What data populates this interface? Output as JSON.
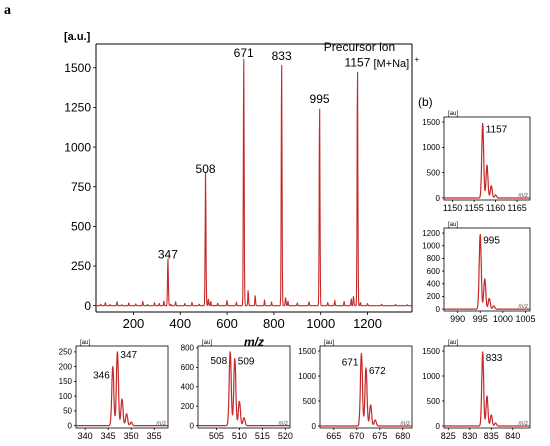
{
  "figure": {
    "panel_a_label": "a",
    "panel_b_label": "(b)"
  },
  "chart_data": [
    {
      "id": "main",
      "type": "line",
      "ylabel": "[a.u.]",
      "xlabel": "m/z",
      "xlim": [
        40,
        1390
      ],
      "ylim": [
        -40,
        1650
      ],
      "x_ticks": [
        200,
        400,
        600,
        800,
        1000,
        1200
      ],
      "y_ticks": [
        0,
        250,
        500,
        750,
        1000,
        1250,
        1500
      ],
      "series": [
        {
          "color": "#c62828",
          "baseline": [
            [
              60,
              10
            ],
            [
              80,
              20
            ],
            [
              100,
              8
            ],
            [
              130,
              25
            ],
            [
              150,
              6
            ],
            [
              180,
              18
            ],
            [
              210,
              12
            ],
            [
              240,
              28
            ],
            [
              260,
              8
            ],
            [
              290,
              20
            ],
            [
              310,
              14
            ],
            [
              330,
              30
            ],
            [
              360,
              10
            ],
            [
              380,
              26
            ],
            [
              420,
              14
            ],
            [
              450,
              22
            ],
            [
              480,
              10
            ],
            [
              530,
              28
            ],
            [
              560,
              16
            ],
            [
              600,
              34
            ],
            [
              640,
              22
            ],
            [
              690,
              40
            ],
            [
              720,
              26
            ],
            [
              760,
              36
            ],
            [
              790,
              24
            ],
            [
              860,
              30
            ],
            [
              900,
              18
            ],
            [
              950,
              26
            ],
            [
              1030,
              20
            ],
            [
              1060,
              34
            ],
            [
              1100,
              28
            ],
            [
              1130,
              45
            ],
            [
              1170,
              20
            ],
            [
              1200,
              14
            ],
            [
              1260,
              10
            ],
            [
              1320,
              8
            ],
            [
              1370,
              6
            ]
          ],
          "peaks": [
            {
              "x": 347,
              "y": 260,
              "label": "347"
            },
            {
              "x": 508,
              "y": 800,
              "label": "508"
            },
            {
              "x": 671,
              "y": 1530,
              "label": "671"
            },
            {
              "x": 833,
              "y": 1510,
              "label": "833"
            },
            {
              "x": 995,
              "y": 1240,
              "label": "995"
            },
            {
              "x": 1157,
              "y": 1470,
              "label": "1157"
            }
          ],
          "minor_peaks": [
            {
              "x": 349,
              "y": 70
            },
            {
              "x": 510,
              "y": 90
            },
            {
              "x": 520,
              "y": 40
            },
            {
              "x": 673,
              "y": 150
            },
            {
              "x": 690,
              "y": 60
            },
            {
              "x": 720,
              "y": 40
            },
            {
              "x": 835,
              "y": 120
            },
            {
              "x": 850,
              "y": 50
            },
            {
              "x": 997,
              "y": 90
            },
            {
              "x": 1140,
              "y": 60
            },
            {
              "x": 1159,
              "y": 110
            }
          ]
        }
      ],
      "annotations": [
        {
          "text": "Precursor ion",
          "x": 1157
        },
        {
          "text": "[M+Na]",
          "superscript": "+",
          "x": 1157
        }
      ]
    },
    {
      "id": "inset-1157",
      "type": "line",
      "ylabel": "[au]",
      "xlabel": "m/z",
      "xlim": [
        1148,
        1168
      ],
      "ylim": [
        -40,
        1600
      ],
      "x_ticks": [
        1150,
        1155,
        1160,
        1165
      ],
      "y_ticks": [
        0,
        500,
        1000,
        1500
      ],
      "series": [
        {
          "color": "#c62828",
          "peaks": [
            {
              "x": 1157,
              "y": 1470
            },
            {
              "x": 1158,
              "y": 650
            },
            {
              "x": 1159,
              "y": 240
            },
            {
              "x": 1160,
              "y": 60
            }
          ]
        }
      ],
      "peak_label": "1157"
    },
    {
      "id": "inset-995",
      "type": "line",
      "ylabel": "[au]",
      "xlabel": "m/z",
      "xlim": [
        987,
        1006
      ],
      "ylim": [
        -30,
        1280
      ],
      "x_ticks": [
        990,
        995,
        1000,
        1005
      ],
      "y_ticks": [
        0,
        200,
        400,
        600,
        800,
        1000,
        1200
      ],
      "series": [
        {
          "color": "#c62828",
          "peaks": [
            {
              "x": 995,
              "y": 1180
            },
            {
              "x": 996,
              "y": 480
            },
            {
              "x": 997,
              "y": 170
            },
            {
              "x": 998,
              "y": 50
            }
          ]
        }
      ],
      "peak_label": "995"
    },
    {
      "id": "inset-347",
      "type": "line",
      "ylabel": "[au]",
      "xlabel": "m/z",
      "xlim": [
        338,
        358
      ],
      "ylim": [
        -8,
        270
      ],
      "x_ticks": [
        340,
        345,
        350,
        355
      ],
      "y_ticks": [
        0,
        50,
        100,
        150,
        200,
        250
      ],
      "series": [
        {
          "color": "#c62828",
          "peaks": [
            {
              "x": 346,
              "y": 200
            },
            {
              "x": 347,
              "y": 250
            },
            {
              "x": 348,
              "y": 90
            },
            {
              "x": 349,
              "y": 40
            },
            {
              "x": 350,
              "y": 12
            }
          ]
        }
      ],
      "peak_labels": [
        {
          "x": 346,
          "text": "346"
        },
        {
          "x": 347,
          "text": "347"
        }
      ]
    },
    {
      "id": "inset-508",
      "type": "line",
      "ylabel": "[au]",
      "xlabel": "m/z",
      "xlim": [
        501,
        521
      ],
      "ylim": [
        -25,
        820
      ],
      "x_ticks": [
        505,
        510,
        515,
        520
      ],
      "y_ticks": [
        0,
        200,
        400,
        600,
        800
      ],
      "series": [
        {
          "color": "#c62828",
          "peaks": [
            {
              "x": 508,
              "y": 760
            },
            {
              "x": 509,
              "y": 690
            },
            {
              "x": 510,
              "y": 250
            },
            {
              "x": 511,
              "y": 80
            }
          ]
        }
      ],
      "peak_labels": [
        {
          "x": 508,
          "text": "508"
        },
        {
          "x": 509,
          "text": "509"
        }
      ]
    },
    {
      "id": "inset-671",
      "type": "line",
      "ylabel": "[au]",
      "xlabel": "m/z",
      "xlim": [
        662,
        682
      ],
      "ylim": [
        -40,
        1600
      ],
      "x_ticks": [
        665,
        670,
        675,
        680
      ],
      "y_ticks": [
        0,
        500,
        1000,
        1500
      ],
      "series": [
        {
          "color": "#c62828",
          "peaks": [
            {
              "x": 671,
              "y": 1450
            },
            {
              "x": 672,
              "y": 1160
            },
            {
              "x": 673,
              "y": 420
            },
            {
              "x": 674,
              "y": 120
            }
          ]
        }
      ],
      "peak_labels": [
        {
          "x": 671,
          "text": "671"
        },
        {
          "x": 672,
          "text": "672"
        }
      ]
    },
    {
      "id": "inset-833",
      "type": "line",
      "ylabel": "[au]",
      "xlabel": "m/z",
      "xlim": [
        824,
        844
      ],
      "ylim": [
        -40,
        1600
      ],
      "x_ticks": [
        825,
        830,
        835,
        840
      ],
      "y_ticks": [
        0,
        500,
        1000,
        1500
      ],
      "series": [
        {
          "color": "#c62828",
          "peaks": [
            {
              "x": 833,
              "y": 1480
            },
            {
              "x": 834,
              "y": 600
            },
            {
              "x": 835,
              "y": 220
            },
            {
              "x": 836,
              "y": 60
            }
          ]
        }
      ],
      "peak_label": "833"
    }
  ]
}
